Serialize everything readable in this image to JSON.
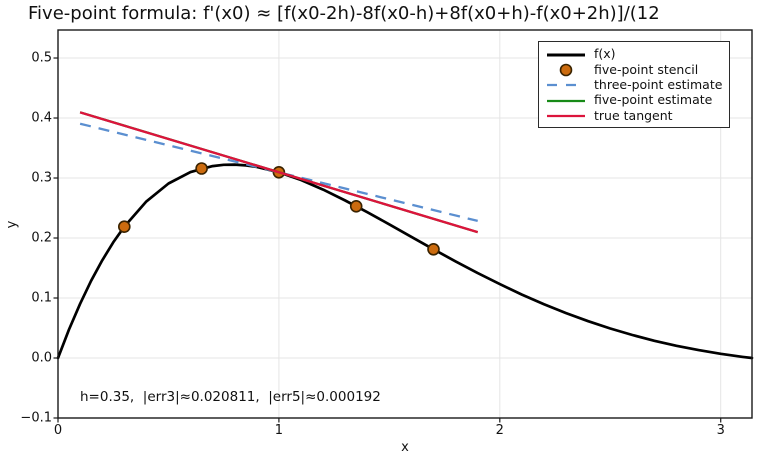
{
  "chart_data": {
    "type": "line",
    "title": "Five-point formula: f'(x0) ≈ [f(x0-2h)-8f(x0-h)+8f(x0+h)-f(x0+2h)]/(12",
    "xlabel": "x",
    "ylabel": "y",
    "xlim": [
      0,
      3.1416
    ],
    "ylim": [
      -0.1,
      0.5467
    ],
    "xticks": [
      0,
      1,
      2,
      3
    ],
    "xticklabels": [
      "0",
      "1",
      "2",
      "3"
    ],
    "yticks": [
      -0.1,
      0.0,
      0.1,
      0.2,
      0.3,
      0.4,
      0.5
    ],
    "yticklabels": [
      "−0.1",
      "0.0",
      "0.1",
      "0.2",
      "0.3",
      "0.4",
      "0.5"
    ],
    "grid": true,
    "grid_color": "#E5E5E5",
    "spine_color": "#1a1a1a",
    "legend_position": "upper right",
    "annotation": "h=0.35,  |err3|≈0.020811,  |err5|≈0.000192",
    "x0": 1.0,
    "h": 0.35,
    "err3": 0.020811,
    "err5": 0.000192,
    "series": [
      {
        "name": "f(x)",
        "kind": "curve",
        "color": "#000000",
        "width": 2.7,
        "x": [
          0,
          0.05,
          0.1,
          0.15,
          0.2,
          0.25,
          0.3,
          0.4,
          0.5,
          0.6,
          0.7,
          0.75,
          0.8,
          0.85,
          0.9,
          1.0,
          1.1,
          1.2,
          1.3,
          1.4,
          1.5,
          1.6,
          1.7,
          1.8,
          1.9,
          2.0,
          2.1,
          2.2,
          2.3,
          2.4,
          2.5,
          2.6,
          2.7,
          2.8,
          2.9,
          3.0,
          3.1,
          3.1416
        ],
        "y": [
          0,
          0.0475,
          0.0903,
          0.1286,
          0.1627,
          0.1927,
          0.2189,
          0.261,
          0.2908,
          0.3099,
          0.3199,
          0.322,
          0.3223,
          0.3211,
          0.3185,
          0.3096,
          0.2967,
          0.2807,
          0.2626,
          0.243,
          0.2226,
          0.2018,
          0.1812,
          0.161,
          0.1415,
          0.1231,
          0.1057,
          0.0896,
          0.0748,
          0.0613,
          0.0491,
          0.0383,
          0.0287,
          0.0204,
          0.0132,
          0.007,
          0.0019,
          0
        ]
      },
      {
        "name": "five-point stencil",
        "kind": "scatter",
        "color": "#CC6B0E",
        "edge_color": "#3A2300",
        "x": [
          0.3,
          0.65,
          1.0,
          1.35,
          1.7
        ],
        "y": [
          0.2189,
          0.3159,
          0.3096,
          0.2529,
          0.1812
        ]
      },
      {
        "name": "three-point estimate",
        "kind": "line",
        "style": "dashed",
        "color": "#5B8FD0",
        "width": 2.3,
        "slope": -0.09,
        "x": [
          0.1,
          1.9
        ],
        "y": [
          0.3906,
          0.2286
        ]
      },
      {
        "name": "five-point estimate",
        "kind": "line",
        "style": "solid",
        "color": "#178A17",
        "width": 2.3,
        "slope": -0.111,
        "x": [
          0.1,
          1.9
        ],
        "y": [
          0.4095,
          0.2097
        ]
      },
      {
        "name": "true tangent",
        "kind": "line",
        "style": "solid",
        "color": "#DC143C",
        "width": 2.3,
        "slope": -0.1108,
        "x": [
          0.1,
          1.9
        ],
        "y": [
          0.4093,
          0.2099
        ]
      }
    ]
  },
  "legend": {
    "entries": [
      {
        "label": "f(x)",
        "swatch": "thick-line",
        "color": "#000000"
      },
      {
        "label": "five-point stencil",
        "swatch": "marker",
        "color": "#CC6B0E",
        "edge": "#3A2300"
      },
      {
        "label": "three-point estimate",
        "swatch": "dashed-line",
        "color": "#5B8FD0"
      },
      {
        "label": "five-point estimate",
        "swatch": "line",
        "color": "#178A17"
      },
      {
        "label": "true tangent",
        "swatch": "line",
        "color": "#DC143C"
      }
    ]
  }
}
